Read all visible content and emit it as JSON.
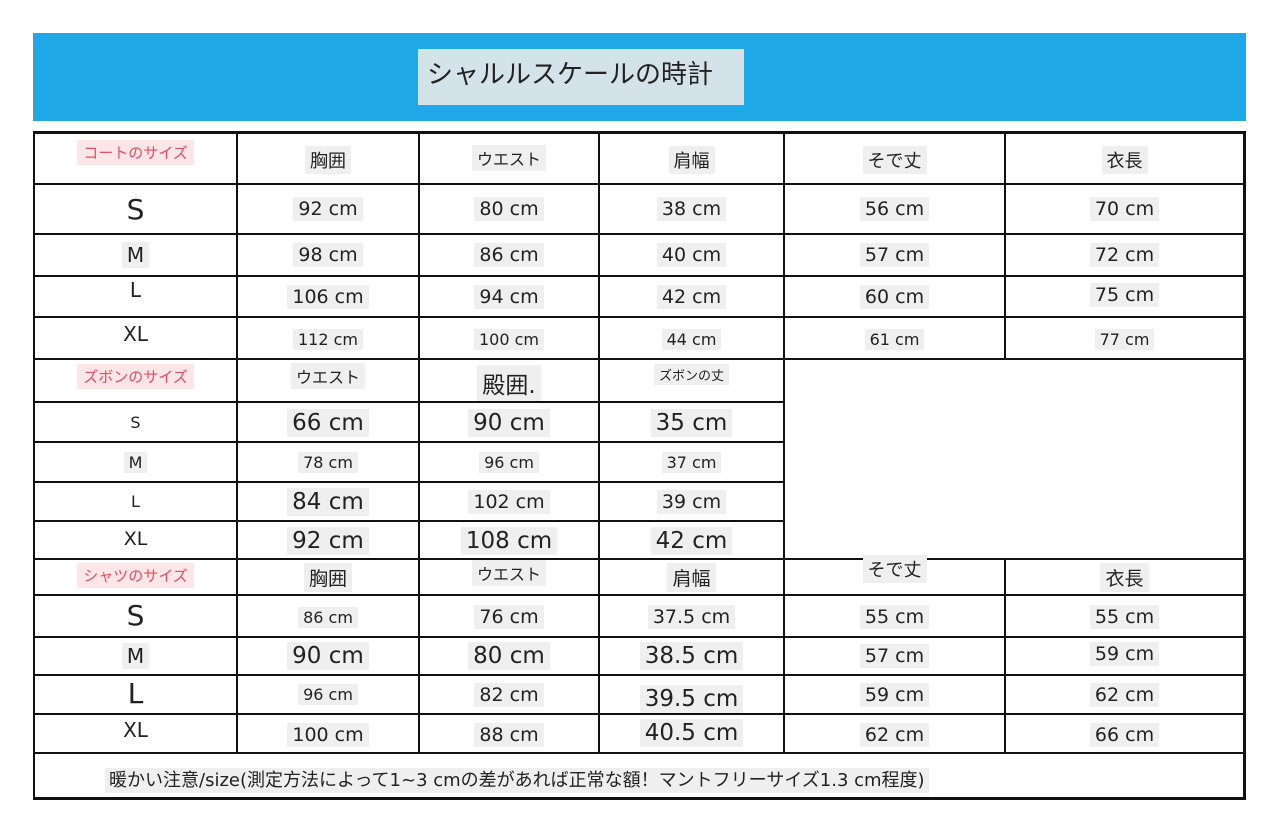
{
  "title": "シャルルスケールの時計",
  "coat": {
    "label": "コートのサイズ",
    "headers": [
      "胸囲",
      "ウエスト",
      "肩幅",
      "そで丈",
      "衣長"
    ],
    "rows": [
      {
        "size": "S",
        "values": [
          "92 cm",
          "80 cm",
          "38 cm",
          "56 cm",
          "70 cm"
        ]
      },
      {
        "size": "M",
        "values": [
          "98 cm",
          "86 cm",
          "40 cm",
          "57 cm",
          "72 cm"
        ]
      },
      {
        "size": "L",
        "values": [
          "106 cm",
          "94 cm",
          "42 cm",
          "60 cm",
          "75 cm"
        ]
      },
      {
        "size": "XL",
        "values": [
          "112 cm",
          "100 cm",
          "44 cm",
          "61 cm",
          "77 cm"
        ]
      }
    ]
  },
  "pants": {
    "label": "ズボンのサイズ",
    "headers": [
      "ウエスト",
      "殿囲.",
      "ズボンの丈"
    ],
    "rows": [
      {
        "size": "S",
        "values": [
          "66 cm",
          "90 cm",
          "35 cm"
        ]
      },
      {
        "size": "M",
        "values": [
          "78 cm",
          "96 cm",
          "37 cm"
        ]
      },
      {
        "size": "L",
        "values": [
          "84 cm",
          "102 cm",
          "39 cm"
        ]
      },
      {
        "size": "XL",
        "values": [
          "92 cm",
          "108 cm",
          "42 cm"
        ]
      }
    ]
  },
  "shirt": {
    "label": "シャツのサイズ",
    "headers": [
      "胸囲",
      "ウエスト",
      "肩幅",
      "そで丈",
      "衣長"
    ],
    "rows": [
      {
        "size": "S",
        "values": [
          "86 cm",
          "76 cm",
          "37.5 cm",
          "55 cm",
          "55 cm"
        ]
      },
      {
        "size": "M",
        "values": [
          "90 cm",
          "80 cm",
          "38.5 cm",
          "57 cm",
          "59 cm"
        ]
      },
      {
        "size": "L",
        "values": [
          "96 cm",
          "82 cm",
          "39.5 cm",
          "59 cm",
          "62 cm"
        ]
      },
      {
        "size": "XL",
        "values": [
          "100 cm",
          "88 cm",
          "40.5 cm",
          "62 cm",
          "66 cm"
        ]
      }
    ]
  },
  "note": "暖かい注意/size(測定方法によって1~3 cmの差があれば正常な額！マントフリーサイズ1.3 cm程度)"
}
